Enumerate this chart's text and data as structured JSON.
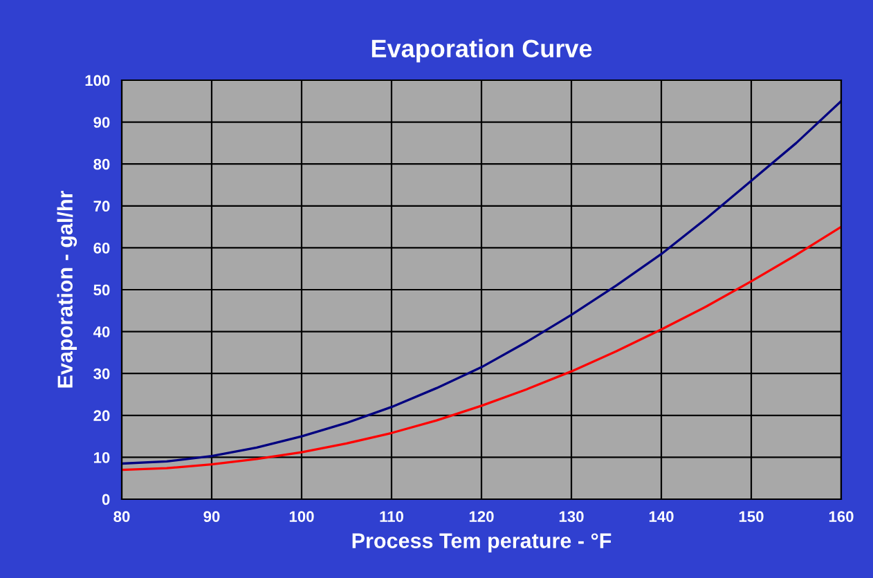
{
  "chart_data": {
    "type": "line",
    "title": "Evaporation Curve",
    "xlabel": "Process Tem perature - °F",
    "ylabel": "Evaporation - gal/hr",
    "x": [
      80,
      85,
      90,
      95,
      100,
      105,
      110,
      115,
      120,
      125,
      130,
      135,
      140,
      145,
      150,
      155,
      160
    ],
    "series": [
      {
        "color": "#000080",
        "values": [
          8.5,
          9,
          10.3,
          12.3,
          15,
          18.2,
          22,
          26.5,
          31.5,
          37.5,
          44,
          51,
          58.5,
          67,
          76,
          85,
          95
        ]
      },
      {
        "color": "#ff0000",
        "values": [
          7,
          7.4,
          8.3,
          9.6,
          11.2,
          13.3,
          15.8,
          18.8,
          22.3,
          26.2,
          30.5,
          35.3,
          40.5,
          46,
          52,
          58.3,
          65
        ]
      }
    ],
    "xlim": [
      80,
      160
    ],
    "xticks": [
      80,
      90,
      100,
      110,
      120,
      130,
      140,
      150,
      160
    ],
    "ylim": [
      0,
      100
    ],
    "yticks": [
      0,
      10,
      20,
      30,
      40,
      50,
      60,
      70,
      80,
      90,
      100
    ],
    "grid": true,
    "marker": "none",
    "line_style": "solid"
  }
}
